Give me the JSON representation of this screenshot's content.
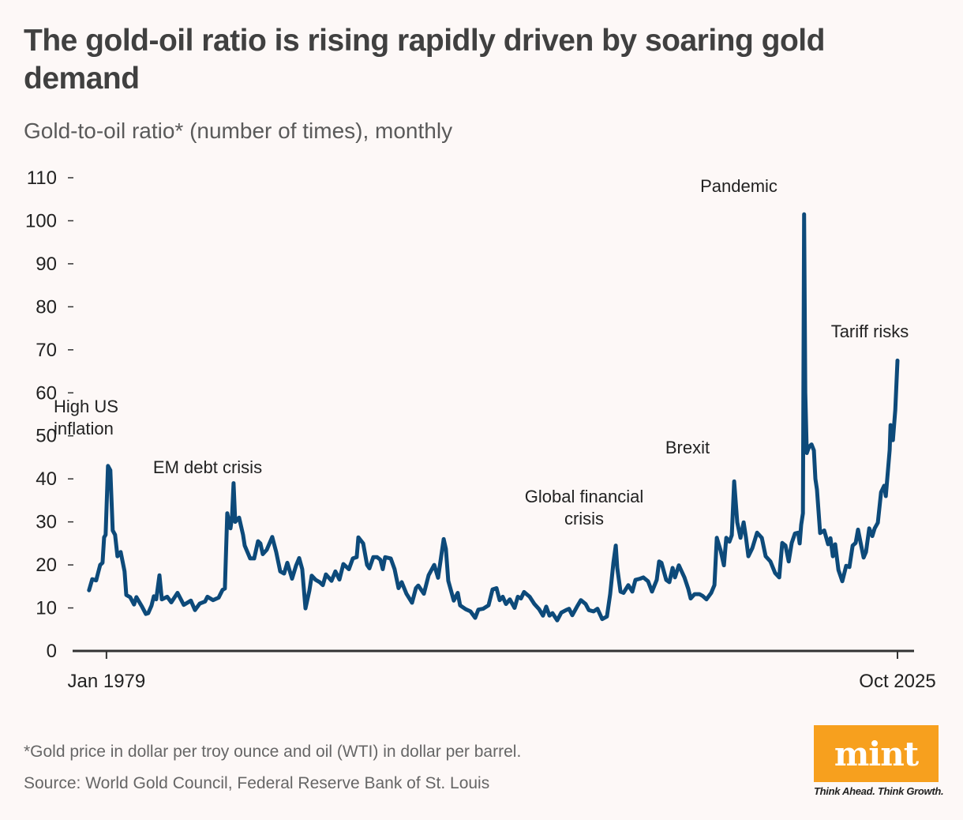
{
  "title": "The gold-oil ratio is rising rapidly driven by soaring gold demand",
  "subtitle": "Gold-to-oil ratio* (number of times), monthly",
  "footnote": "*Gold price in dollar per troy ounce and oil (WTI) in dollar per barrel.",
  "source": "Source: World Gold Council, Federal Reserve Bank of St. Louis",
  "logo": {
    "text": "mint",
    "tagline": "Think Ahead. Think Growth.",
    "color": "#f7a01e"
  },
  "chart_data": {
    "type": "line",
    "title": "The gold-oil ratio is rising rapidly driven by soaring gold demand",
    "ylabel": "Gold-to-oil ratio* (number of times), monthly",
    "xlabel": "",
    "ylim": [
      0,
      110
    ],
    "xlim": [
      1977.0,
      2026.73
    ],
    "yticks": [
      0,
      10,
      20,
      30,
      40,
      50,
      60,
      70,
      80,
      90,
      100,
      110
    ],
    "xticks": [
      {
        "value": 1979.0,
        "label": "Jan 1979"
      },
      {
        "value": 2025.75,
        "label": "Oct 2025"
      }
    ],
    "grid": false,
    "line_color": "#0d4a7a",
    "annotations": [
      {
        "text": "High US inflation",
        "lines": [
          "High US",
          "inflation"
        ],
        "x": 1979.1,
        "y": 43
      },
      {
        "text": "EM debt crisis",
        "lines": [
          "EM debt crisis"
        ],
        "x": 1986.5,
        "y": 39
      },
      {
        "text": "Global financial crisis",
        "lines": [
          "Global financial",
          "crisis"
        ],
        "x": 2009.1,
        "y": 24.5
      },
      {
        "text": "Brexit",
        "lines": [
          "Brexit"
        ],
        "x": 2016.1,
        "y": 39.4
      },
      {
        "text": "Pandemic",
        "lines": [
          "Pandemic"
        ],
        "x": 2020.23,
        "y": 101.5
      },
      {
        "text": "Tariff risks",
        "lines": [
          "Tariff risks"
        ],
        "x": 2025.75,
        "y": 67.5
      }
    ],
    "series": [
      {
        "points": [
          [
            1977.97,
            14.1
          ],
          [
            1978.16,
            16.7
          ],
          [
            1978.39,
            16.4
          ],
          [
            1978.63,
            20
          ],
          [
            1978.77,
            20.5
          ],
          [
            1978.86,
            26.4
          ],
          [
            1978.95,
            27
          ],
          [
            1979.09,
            43
          ],
          [
            1979.23,
            42
          ],
          [
            1979.37,
            28
          ],
          [
            1979.51,
            27
          ],
          [
            1979.65,
            22
          ],
          [
            1979.84,
            23
          ],
          [
            1980.07,
            18.5
          ],
          [
            1980.17,
            13
          ],
          [
            1980.4,
            12.5
          ],
          [
            1980.63,
            10.8
          ],
          [
            1980.77,
            12.5
          ],
          [
            1981.1,
            10.3
          ],
          [
            1981.33,
            8.6
          ],
          [
            1981.47,
            8.8
          ],
          [
            1981.66,
            10.5
          ],
          [
            1981.8,
            12.7
          ],
          [
            1981.94,
            12
          ],
          [
            1982.13,
            17.6
          ],
          [
            1982.27,
            12
          ],
          [
            1982.59,
            12.6
          ],
          [
            1982.83,
            11.3
          ],
          [
            1983.2,
            13.5
          ],
          [
            1983.57,
            10.7
          ],
          [
            1983.99,
            11.7
          ],
          [
            1984.23,
            9.5
          ],
          [
            1984.51,
            11
          ],
          [
            1984.83,
            11.5
          ],
          [
            1984.97,
            12.6
          ],
          [
            1985.3,
            11.8
          ],
          [
            1985.63,
            12.4
          ],
          [
            1985.86,
            14.2
          ],
          [
            1986.0,
            14.5
          ],
          [
            1986.14,
            32
          ],
          [
            1986.33,
            28.5
          ],
          [
            1986.42,
            31
          ],
          [
            1986.51,
            39
          ],
          [
            1986.61,
            30
          ],
          [
            1986.84,
            31
          ],
          [
            1987.07,
            27
          ],
          [
            1987.17,
            24.5
          ],
          [
            1987.49,
            21.5
          ],
          [
            1987.73,
            21.5
          ],
          [
            1987.96,
            25.5
          ],
          [
            1988.1,
            25
          ],
          [
            1988.24,
            22.5
          ],
          [
            1988.47,
            23.5
          ],
          [
            1988.8,
            26.5
          ],
          [
            1989.03,
            23
          ],
          [
            1989.27,
            18.5
          ],
          [
            1989.5,
            18
          ],
          [
            1989.69,
            20.5
          ],
          [
            1989.97,
            16.8
          ],
          [
            1990.2,
            19.8
          ],
          [
            1990.39,
            21.6
          ],
          [
            1990.57,
            19
          ],
          [
            1990.76,
            9.9
          ],
          [
            1990.99,
            14
          ],
          [
            1991.13,
            17.5
          ],
          [
            1991.37,
            16.5
          ],
          [
            1991.6,
            16
          ],
          [
            1991.79,
            15.3
          ],
          [
            1991.97,
            17.8
          ],
          [
            1992.3,
            16.3
          ],
          [
            1992.53,
            18.5
          ],
          [
            1992.77,
            16.6
          ],
          [
            1993.0,
            20.2
          ],
          [
            1993.33,
            19
          ],
          [
            1993.56,
            21.5
          ],
          [
            1993.79,
            21.8
          ],
          [
            1993.89,
            26.4
          ],
          [
            1994.17,
            25
          ],
          [
            1994.4,
            20
          ],
          [
            1994.54,
            19.2
          ],
          [
            1994.77,
            21.8
          ],
          [
            1995.0,
            21.8
          ],
          [
            1995.19,
            21.2
          ],
          [
            1995.33,
            19
          ],
          [
            1995.47,
            21.8
          ],
          [
            1995.8,
            21.5
          ],
          [
            1996.03,
            19
          ],
          [
            1996.26,
            14.6
          ],
          [
            1996.45,
            16
          ],
          [
            1996.73,
            13.3
          ],
          [
            1997.06,
            11.2
          ],
          [
            1997.29,
            14.6
          ],
          [
            1997.43,
            15.2
          ],
          [
            1997.76,
            13.3
          ],
          [
            1998.04,
            17.6
          ],
          [
            1998.37,
            20
          ],
          [
            1998.6,
            17
          ],
          [
            1998.93,
            26
          ],
          [
            1999.06,
            23.7
          ],
          [
            1999.2,
            16.3
          ],
          [
            1999.53,
            11.7
          ],
          [
            1999.76,
            13.5
          ],
          [
            1999.9,
            10.6
          ],
          [
            2000.23,
            9.7
          ],
          [
            2000.51,
            9.2
          ],
          [
            2000.79,
            7.7
          ],
          [
            2000.98,
            9.6
          ],
          [
            2001.26,
            9.8
          ],
          [
            2001.58,
            10.6
          ],
          [
            2001.82,
            14.3
          ],
          [
            2002.05,
            14.6
          ],
          [
            2002.24,
            11.8
          ],
          [
            2002.42,
            12.6
          ],
          [
            2002.61,
            10.9
          ],
          [
            2002.84,
            12
          ],
          [
            2003.12,
            10
          ],
          [
            2003.31,
            12.6
          ],
          [
            2003.5,
            12.2
          ],
          [
            2003.68,
            13.7
          ],
          [
            2004.01,
            12.6
          ],
          [
            2004.29,
            10.9
          ],
          [
            2004.57,
            9.7
          ],
          [
            2004.8,
            8.2
          ],
          [
            2004.99,
            10.3
          ],
          [
            2005.18,
            8.2
          ],
          [
            2005.36,
            8.8
          ],
          [
            2005.64,
            7.1
          ],
          [
            2005.88,
            8.9
          ],
          [
            2006.16,
            9.5
          ],
          [
            2006.34,
            9.8
          ],
          [
            2006.53,
            8.3
          ],
          [
            2006.81,
            10.3
          ],
          [
            2007.04,
            11.8
          ],
          [
            2007.32,
            10.9
          ],
          [
            2007.51,
            9.5
          ],
          [
            2007.79,
            9.2
          ],
          [
            2008.02,
            9.8
          ],
          [
            2008.3,
            7.4
          ],
          [
            2008.58,
            8
          ],
          [
            2008.77,
            13.2
          ],
          [
            2008.96,
            20.5
          ],
          [
            2009.1,
            24.5
          ],
          [
            2009.19,
            19.3
          ],
          [
            2009.38,
            13.8
          ],
          [
            2009.56,
            13.5
          ],
          [
            2009.84,
            15.3
          ],
          [
            2010.08,
            13.8
          ],
          [
            2010.26,
            16.5
          ],
          [
            2010.54,
            16.8
          ],
          [
            2010.73,
            17.1
          ],
          [
            2011.01,
            16.2
          ],
          [
            2011.24,
            13.8
          ],
          [
            2011.52,
            16.5
          ],
          [
            2011.66,
            20.8
          ],
          [
            2011.8,
            20.5
          ],
          [
            2012.08,
            16.5
          ],
          [
            2012.27,
            16
          ],
          [
            2012.46,
            19.3
          ],
          [
            2012.6,
            17.1
          ],
          [
            2012.83,
            19.9
          ],
          [
            2013.16,
            17.1
          ],
          [
            2013.39,
            14.4
          ],
          [
            2013.53,
            12.2
          ],
          [
            2013.76,
            13.2
          ],
          [
            2014.04,
            13.2
          ],
          [
            2014.23,
            12.8
          ],
          [
            2014.46,
            12
          ],
          [
            2014.74,
            13.5
          ],
          [
            2014.93,
            15.3
          ],
          [
            2015.07,
            26.3
          ],
          [
            2015.3,
            23.3
          ],
          [
            2015.49,
            19.9
          ],
          [
            2015.63,
            26.3
          ],
          [
            2015.82,
            25.4
          ],
          [
            2015.96,
            26.9
          ],
          [
            2016.1,
            39.4
          ],
          [
            2016.28,
            29.9
          ],
          [
            2016.47,
            26.3
          ],
          [
            2016.66,
            29.9
          ],
          [
            2016.8,
            26.3
          ],
          [
            2016.94,
            22
          ],
          [
            2017.17,
            23.9
          ],
          [
            2017.45,
            27.5
          ],
          [
            2017.73,
            26.3
          ],
          [
            2017.96,
            22
          ],
          [
            2018.24,
            20.8
          ],
          [
            2018.52,
            18.1
          ],
          [
            2018.76,
            17.1
          ],
          [
            2018.94,
            25.1
          ],
          [
            2019.13,
            24.5
          ],
          [
            2019.32,
            20.8
          ],
          [
            2019.5,
            25.1
          ],
          [
            2019.69,
            27.3
          ],
          [
            2019.88,
            27.5
          ],
          [
            2019.97,
            25
          ],
          [
            2020.06,
            29.3
          ],
          [
            2020.16,
            32
          ],
          [
            2020.23,
            101.5
          ],
          [
            2020.3,
            60
          ],
          [
            2020.39,
            46
          ],
          [
            2020.53,
            47.5
          ],
          [
            2020.67,
            48
          ],
          [
            2020.81,
            46.6
          ],
          [
            2020.9,
            40
          ],
          [
            2020.99,
            37.5
          ],
          [
            2021.18,
            27.4
          ],
          [
            2021.42,
            28
          ],
          [
            2021.65,
            24.8
          ],
          [
            2021.79,
            26.2
          ],
          [
            2021.93,
            22
          ],
          [
            2022.07,
            24.8
          ],
          [
            2022.26,
            18.8
          ],
          [
            2022.49,
            16.2
          ],
          [
            2022.72,
            19.8
          ],
          [
            2022.91,
            19.5
          ],
          [
            2023.1,
            24.5
          ],
          [
            2023.28,
            25.1
          ],
          [
            2023.42,
            28.2
          ],
          [
            2023.56,
            25.4
          ],
          [
            2023.75,
            21.7
          ],
          [
            2023.89,
            23
          ],
          [
            2024.08,
            28.5
          ],
          [
            2024.26,
            26.7
          ],
          [
            2024.4,
            28.5
          ],
          [
            2024.59,
            29.8
          ],
          [
            2024.78,
            36.9
          ],
          [
            2024.96,
            38.4
          ],
          [
            2025.06,
            36
          ],
          [
            2025.29,
            46.7
          ],
          [
            2025.34,
            52.5
          ],
          [
            2025.48,
            49
          ],
          [
            2025.62,
            56
          ],
          [
            2025.75,
            67.5
          ]
        ]
      }
    ]
  }
}
